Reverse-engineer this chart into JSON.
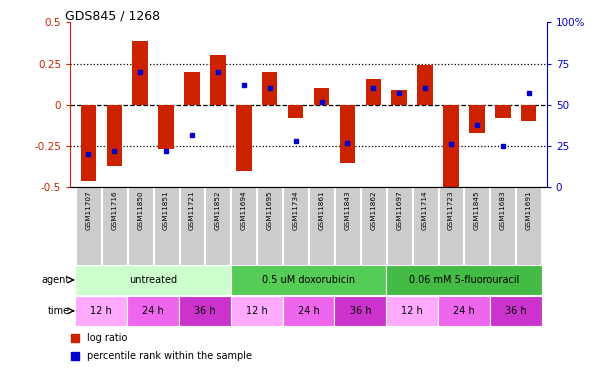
{
  "title": "GDS845 / 1268",
  "samples": [
    "GSM11707",
    "GSM11716",
    "GSM11850",
    "GSM11851",
    "GSM11721",
    "GSM11852",
    "GSM11694",
    "GSM11695",
    "GSM11734",
    "GSM11861",
    "GSM11843",
    "GSM11862",
    "GSM11697",
    "GSM11714",
    "GSM11723",
    "GSM11845",
    "GSM11683",
    "GSM11691"
  ],
  "log_ratio": [
    -0.46,
    -0.37,
    0.39,
    -0.27,
    0.2,
    0.3,
    -0.4,
    0.2,
    -0.08,
    0.1,
    -0.35,
    0.16,
    0.09,
    0.24,
    -0.5,
    -0.17,
    -0.08,
    -0.1
  ],
  "percentile_rank": [
    20,
    22,
    70,
    22,
    32,
    70,
    62,
    60,
    28,
    52,
    27,
    60,
    57,
    60,
    26,
    38,
    25,
    57
  ],
  "ylim": [
    -0.5,
    0.5
  ],
  "yticks_left": [
    -0.5,
    -0.25,
    0,
    0.25,
    0.5
  ],
  "yticks_right": [
    0,
    25,
    50,
    75,
    100
  ],
  "hlines": [
    -0.25,
    0,
    0.25
  ],
  "bar_color": "#cc2200",
  "marker_color": "#0000cc",
  "bar_width": 0.6,
  "agent_groups": [
    {
      "label": "untreated",
      "start": 0,
      "end": 6,
      "color": "#ccffcc"
    },
    {
      "label": "0.5 uM doxorubicin",
      "start": 6,
      "end": 12,
      "color": "#55cc55"
    },
    {
      "label": "0.06 mM 5-fluorouracil",
      "start": 12,
      "end": 18,
      "color": "#44bb44"
    }
  ],
  "time_groups": [
    {
      "label": "12 h",
      "start": 0,
      "end": 2,
      "color": "#ffaaff"
    },
    {
      "label": "24 h",
      "start": 2,
      "end": 4,
      "color": "#ee66ee"
    },
    {
      "label": "36 h",
      "start": 4,
      "end": 6,
      "color": "#cc33cc"
    },
    {
      "label": "12 h",
      "start": 6,
      "end": 8,
      "color": "#ffaaff"
    },
    {
      "label": "24 h",
      "start": 8,
      "end": 10,
      "color": "#ee66ee"
    },
    {
      "label": "36 h",
      "start": 10,
      "end": 12,
      "color": "#cc33cc"
    },
    {
      "label": "12 h",
      "start": 12,
      "end": 14,
      "color": "#ffaaff"
    },
    {
      "label": "24 h",
      "start": 14,
      "end": 16,
      "color": "#ee66ee"
    },
    {
      "label": "36 h",
      "start": 16,
      "end": 18,
      "color": "#cc33cc"
    }
  ],
  "left_axis_color": "#cc2200",
  "right_axis_color": "#0000cc",
  "bg_color": "#ffffff",
  "sample_bg": "#cccccc"
}
